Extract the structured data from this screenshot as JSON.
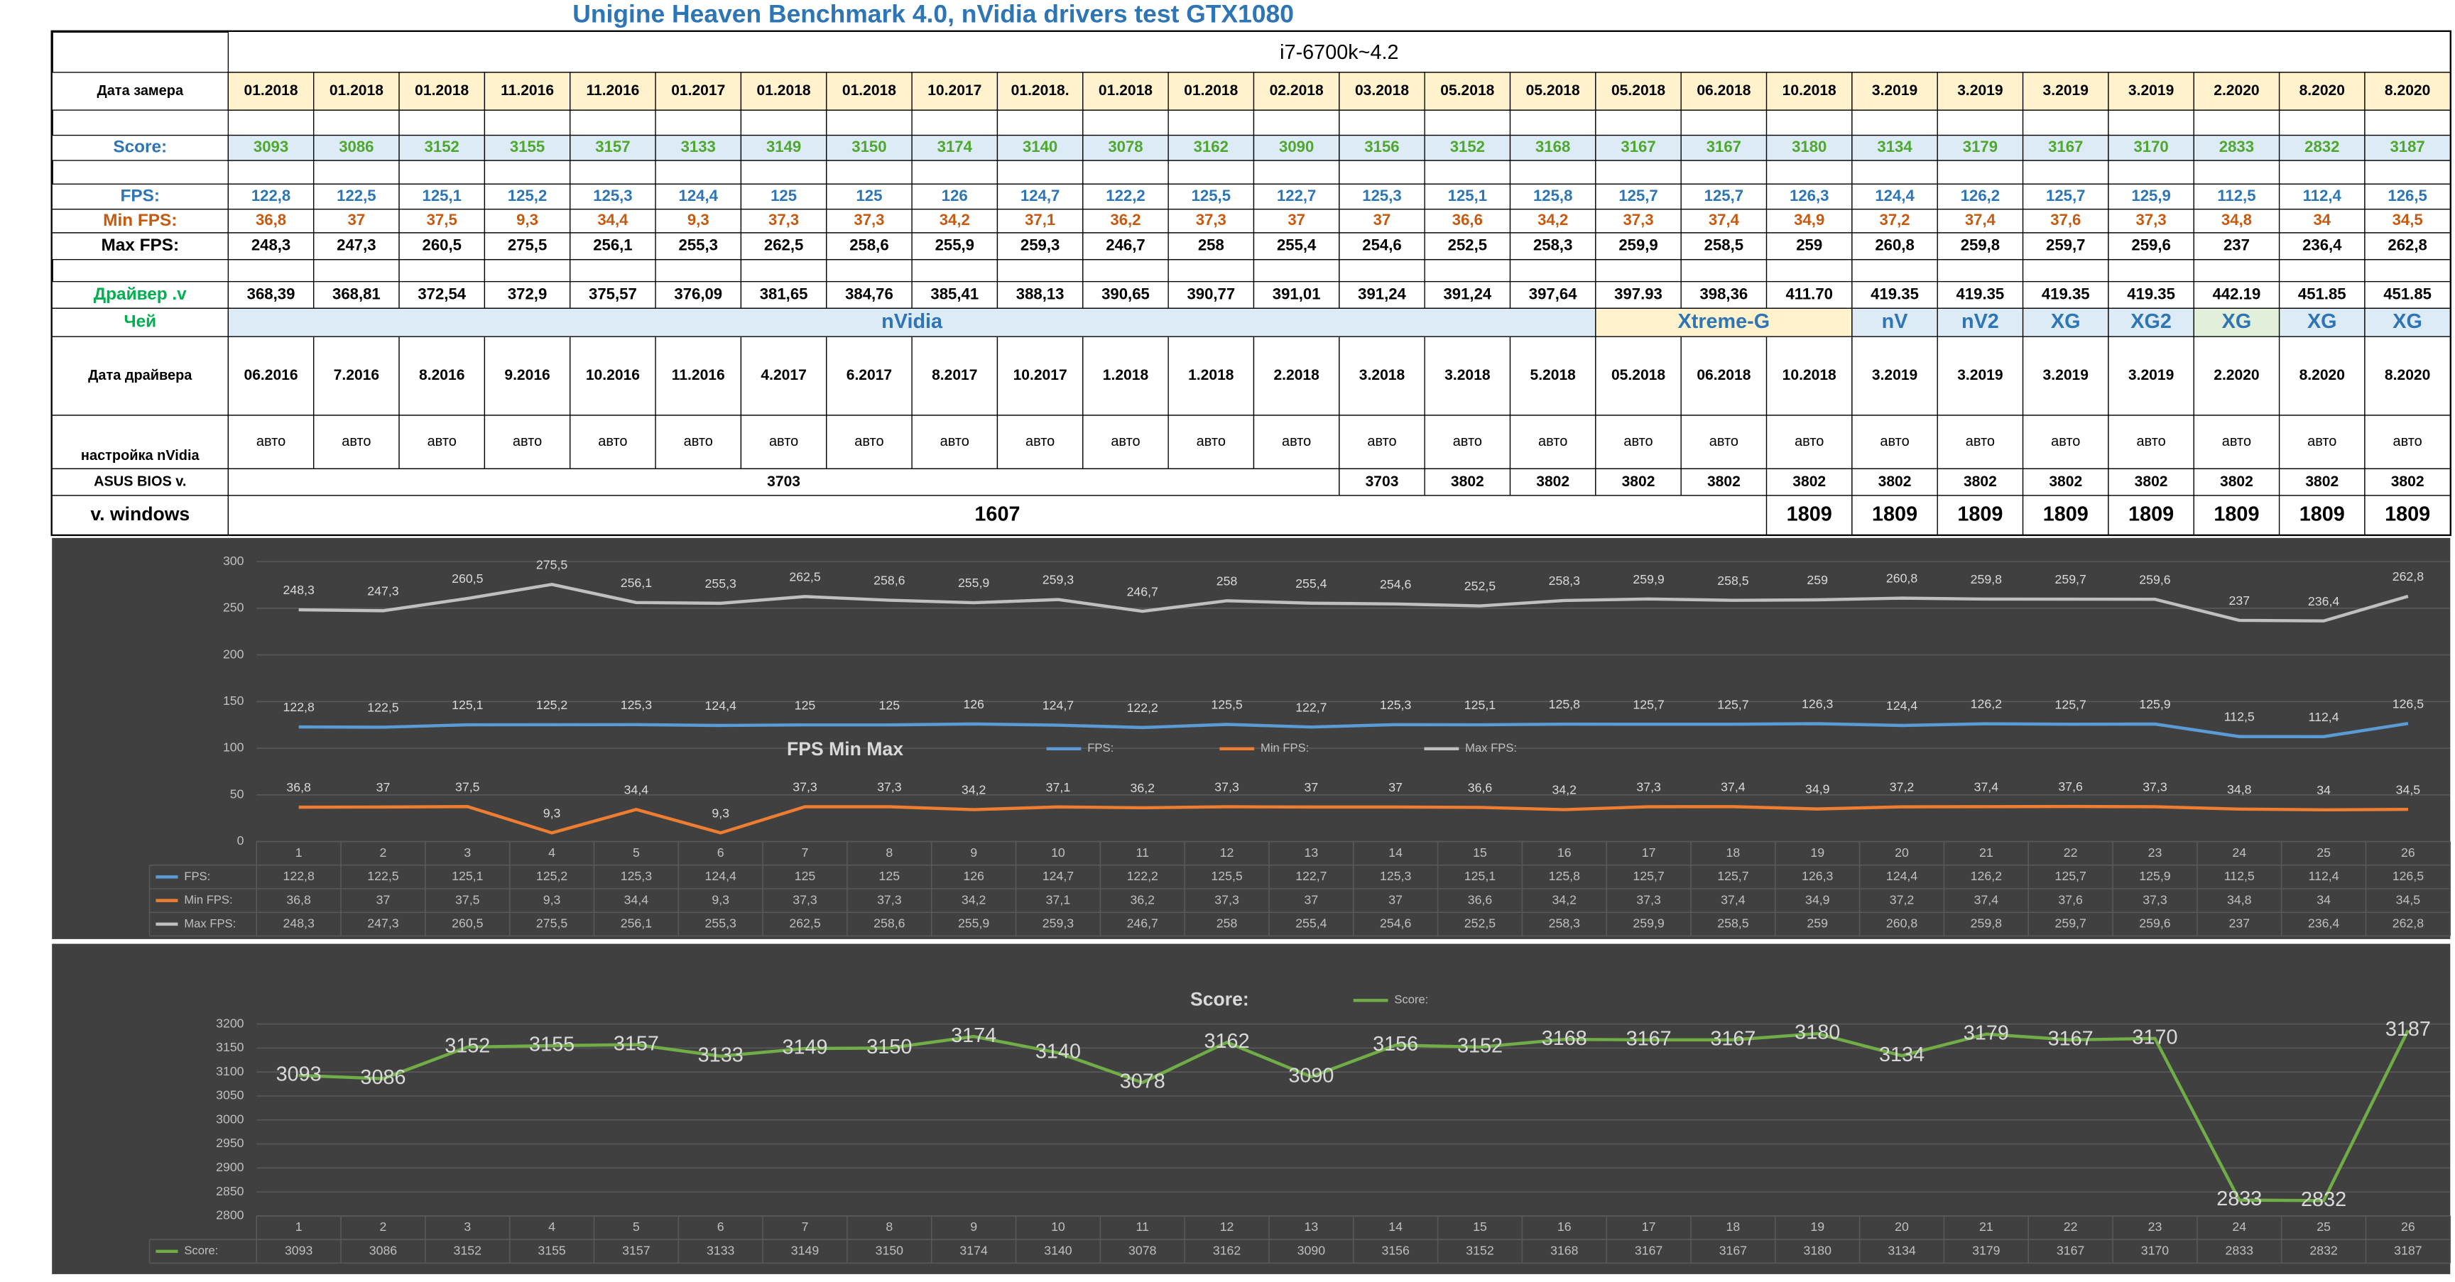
{
  "title": "Unigine Heaven Benchmark 4.0, nVidia drivers test GTX1080",
  "table": {
    "header": "i7-6700k~4.2",
    "rows": [
      {
        "label": "Дата замера",
        "cells": [
          "01.2018",
          "01.2018",
          "01.2018",
          "11.2016",
          "11.2016",
          "01.2017",
          "01.2018",
          "01.2018",
          "10.2017",
          "01.2018.",
          "01.2018",
          "01.2018",
          "02.2018",
          "03.2018",
          "05.2018",
          "05.2018",
          "05.2018",
          "06.2018",
          "10.2018",
          "3.2019",
          "3.2019",
          "3.2019",
          "3.2019",
          "2.2020",
          "8.2020",
          "8.2020"
        ]
      },
      {
        "label": "Score:",
        "cells": [
          "3093",
          "3086",
          "3152",
          "3155",
          "3157",
          "3133",
          "3149",
          "3150",
          "3174",
          "3140",
          "3078",
          "3162",
          "3090",
          "3156",
          "3152",
          "3168",
          "3167",
          "3167",
          "3180",
          "3134",
          "3179",
          "3167",
          "3170",
          "2833",
          "2832",
          "3187"
        ]
      },
      {
        "label": "FPS:",
        "cells": [
          "122,8",
          "122,5",
          "125,1",
          "125,2",
          "125,3",
          "124,4",
          "125",
          "125",
          "126",
          "124,7",
          "122,2",
          "125,5",
          "122,7",
          "125,3",
          "125,1",
          "125,8",
          "125,7",
          "125,7",
          "126,3",
          "124,4",
          "126,2",
          "125,7",
          "125,9",
          "112,5",
          "112,4",
          "126,5"
        ]
      },
      {
        "label": "Min FPS:",
        "cells": [
          "36,8",
          "37",
          "37,5",
          "9,3",
          "34,4",
          "9,3",
          "37,3",
          "37,3",
          "34,2",
          "37,1",
          "36,2",
          "37,3",
          "37",
          "37",
          "36,6",
          "34,2",
          "37,3",
          "37,4",
          "34,9",
          "37,2",
          "37,4",
          "37,6",
          "37,3",
          "34,8",
          "34",
          "34,5"
        ]
      },
      {
        "label": "Max FPS:",
        "cells": [
          "248,3",
          "247,3",
          "260,5",
          "275,5",
          "256,1",
          "255,3",
          "262,5",
          "258,6",
          "255,9",
          "259,3",
          "246,7",
          "258",
          "255,4",
          "254,6",
          "252,5",
          "258,3",
          "259,9",
          "258,5",
          "259",
          "260,8",
          "259,8",
          "259,7",
          "259,6",
          "237",
          "236,4",
          "262,8"
        ]
      },
      {
        "label": "Драйвер .v",
        "cells": [
          "368,39",
          "368,81",
          "372,54",
          "372,9",
          "375,57",
          "376,09",
          "381,65",
          "384,76",
          "385,41",
          "388,13",
          "390,65",
          "390,77",
          "391,01",
          "391,24",
          "391,24",
          "397,64",
          "397.93",
          "398,36",
          "411.70",
          "419.35",
          "419.35",
          "419.35",
          "419.35",
          "442.19",
          "451.85",
          "451.85"
        ]
      },
      {
        "label": "Чей",
        "cells": [
          "nVidia",
          "Xtreme-G",
          "nV",
          "nV2",
          "XG",
          "XG2",
          "XG",
          "XG",
          "XG"
        ]
      },
      {
        "label": "Дата драйвера",
        "cells": [
          "06.2016",
          "7.2016",
          "8.2016",
          "9.2016",
          "10.2016",
          "11.2016",
          "4.2017",
          "6.2017",
          "8.2017",
          "10.2017",
          "1.2018",
          "1.2018",
          "2.2018",
          "3.2018",
          "3.2018",
          "5.2018",
          "05.2018",
          "06.2018",
          "10.2018",
          "3.2019",
          "3.2019",
          "3.2019",
          "3.2019",
          "2.2020",
          "8.2020",
          "8.2020"
        ]
      },
      {
        "label": "настройка nVidia",
        "cells": [
          "авто",
          "авто",
          "авто",
          "авто",
          "авто",
          "авто",
          "авто",
          "авто",
          "авто",
          "авто",
          "авто",
          "авто",
          "авто",
          "авто",
          "авто",
          "авто",
          "авто",
          "авто",
          "авто",
          "авто",
          "авто",
          "авто",
          "авто",
          "авто",
          "авто",
          "авто"
        ]
      },
      {
        "label": "ASUS BIOS v.",
        "cells": [
          "3703",
          "3703",
          "3802",
          "3802",
          "3802",
          "3802",
          "3802",
          "3802",
          "3802",
          "3802",
          "3802",
          "3802",
          "3802",
          "3802"
        ]
      },
      {
        "label": "v. windows",
        "cells": [
          "1607",
          "1809",
          "1809",
          "1809",
          "1809",
          "1809",
          "1809",
          "1809",
          "1809"
        ]
      }
    ]
  },
  "chart_data": [
    {
      "type": "line",
      "title": "FPS Min Max",
      "categories": [
        "1",
        "2",
        "3",
        "4",
        "5",
        "6",
        "7",
        "8",
        "9",
        "10",
        "11",
        "12",
        "13",
        "14",
        "15",
        "16",
        "17",
        "18",
        "19",
        "20",
        "21",
        "22",
        "23",
        "24",
        "25",
        "26"
      ],
      "ylim": [
        0,
        300
      ],
      "yticks": [
        0,
        50,
        100,
        150,
        200,
        250,
        300
      ],
      "grid": true,
      "legend": "top",
      "series": [
        {
          "name": "FPS:",
          "color": "#5b9bd5",
          "values": [
            122.8,
            122.5,
            125.1,
            125.2,
            125.3,
            124.4,
            125,
            125,
            126,
            124.7,
            122.2,
            125.5,
            122.7,
            125.3,
            125.1,
            125.8,
            125.7,
            125.7,
            126.3,
            124.4,
            126.2,
            125.7,
            125.9,
            112.5,
            112.4,
            126.5
          ],
          "value_labels": [
            "122,8",
            "122,5",
            "125,1",
            "125,2",
            "125,3",
            "124,4",
            "125",
            "125",
            "126",
            "124,7",
            "122,2",
            "125,5",
            "122,7",
            "125,3",
            "125,1",
            "125,8",
            "125,7",
            "125,7",
            "126,3",
            "124,4",
            "126,2",
            "125,7",
            "125,9",
            "112,5",
            "112,4",
            "126,5"
          ]
        },
        {
          "name": "Min FPS:",
          "color": "#ed7d31",
          "values": [
            36.8,
            37,
            37.5,
            9.3,
            34.4,
            9.3,
            37.3,
            37.3,
            34.2,
            37.1,
            36.2,
            37.3,
            37,
            37,
            36.6,
            34.2,
            37.3,
            37.4,
            34.9,
            37.2,
            37.4,
            37.6,
            37.3,
            34.8,
            34,
            34.5
          ],
          "value_labels": [
            "36,8",
            "37",
            "37,5",
            "9,3",
            "34,4",
            "9,3",
            "37,3",
            "37,3",
            "34,2",
            "37,1",
            "36,2",
            "37,3",
            "37",
            "37",
            "36,6",
            "34,2",
            "37,3",
            "37,4",
            "34,9",
            "37,2",
            "37,4",
            "37,6",
            "37,3",
            "34,8",
            "34",
            "34,5"
          ]
        },
        {
          "name": "Max FPS:",
          "color": "#bfbfbf",
          "values": [
            248.3,
            247.3,
            260.5,
            275.5,
            256.1,
            255.3,
            262.5,
            258.6,
            255.9,
            259.3,
            246.7,
            258,
            255.4,
            254.6,
            252.5,
            258.3,
            259.9,
            258.5,
            259,
            260.8,
            259.8,
            259.7,
            259.6,
            237,
            236.4,
            262.8
          ],
          "value_labels": [
            "248,3",
            "247,3",
            "260,5",
            "275,5",
            "256,1",
            "255,3",
            "262,5",
            "258,6",
            "255,9",
            "259,3",
            "246,7",
            "258",
            "255,4",
            "254,6",
            "252,5",
            "258,3",
            "259,9",
            "258,5",
            "259",
            "260,8",
            "259,8",
            "259,7",
            "259,6",
            "237",
            "236,4",
            "262,8"
          ]
        }
      ]
    },
    {
      "type": "line",
      "title": "Score:",
      "categories": [
        "1",
        "2",
        "3",
        "4",
        "5",
        "6",
        "7",
        "8",
        "9",
        "10",
        "11",
        "12",
        "13",
        "14",
        "15",
        "16",
        "17",
        "18",
        "19",
        "20",
        "21",
        "22",
        "23",
        "24",
        "25",
        "26"
      ],
      "ylim": [
        2800,
        3200
      ],
      "yticks": [
        2800,
        2850,
        2900,
        2950,
        3000,
        3050,
        3100,
        3150,
        3200
      ],
      "grid": true,
      "legend": "top",
      "series": [
        {
          "name": "Score:",
          "color": "#70ad47",
          "values": [
            3093,
            3086,
            3152,
            3155,
            3157,
            3133,
            3149,
            3150,
            3174,
            3140,
            3078,
            3162,
            3090,
            3156,
            3152,
            3168,
            3167,
            3167,
            3180,
            3134,
            3179,
            3167,
            3170,
            2833,
            2832,
            3187
          ]
        }
      ]
    }
  ]
}
